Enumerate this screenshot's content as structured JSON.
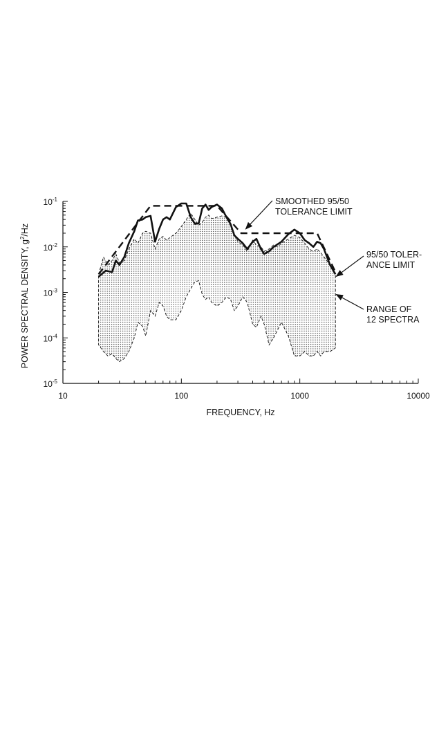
{
  "chart_data": {
    "type": "line",
    "xlabel": "FREQUENCY, Hz",
    "ylabel": "POWER SPECTRAL DENSITY, g²/Hz",
    "ylabel_parts": {
      "before": "POWER SPECTRAL DENSITY, g",
      "sup": "2",
      "after": "/Hz"
    },
    "x_scale": "log",
    "y_scale": "log",
    "xlim": [
      10,
      10000
    ],
    "ylim": [
      1e-05,
      0.1
    ],
    "x_ticks": [
      {
        "value": 10,
        "label": "10"
      },
      {
        "value": 100,
        "label": "100"
      },
      {
        "value": 1000,
        "label": "1000"
      },
      {
        "value": 10000,
        "label": "10000"
      }
    ],
    "y_ticks": [
      {
        "value": 0.1,
        "base": "10",
        "exp": "-1"
      },
      {
        "value": 0.01,
        "base": "10",
        "exp": "-2"
      },
      {
        "value": 0.001,
        "base": "10",
        "exp": "-3"
      },
      {
        "value": 0.0001,
        "base": "10",
        "exp": "-4"
      },
      {
        "value": 1e-05,
        "base": "10",
        "exp": "-5"
      }
    ],
    "grid": false,
    "series": [
      {
        "style": "shaded-band",
        "x": [
          20,
          22,
          24,
          26,
          28,
          30,
          33,
          36,
          40,
          43,
          47,
          50,
          55,
          60,
          65,
          70,
          75,
          80,
          90,
          100,
          110,
          120,
          130,
          140,
          150,
          160,
          170,
          180,
          200,
          220,
          240,
          260,
          280,
          300,
          330,
          360,
          400,
          430,
          470,
          500,
          550,
          600,
          650,
          700,
          800,
          900,
          1000,
          1100,
          1200,
          1300,
          1400,
          1500,
          1600,
          1800,
          2000
        ],
        "upper": [
          0.0025,
          0.006,
          0.004,
          0.005,
          0.007,
          0.0045,
          0.005,
          0.009,
          0.015,
          0.012,
          0.02,
          0.022,
          0.02,
          0.009,
          0.015,
          0.017,
          0.014,
          0.016,
          0.02,
          0.028,
          0.04,
          0.055,
          0.04,
          0.03,
          0.035,
          0.045,
          0.05,
          0.042,
          0.045,
          0.048,
          0.045,
          0.03,
          0.02,
          0.013,
          0.011,
          0.008,
          0.014,
          0.011,
          0.01,
          0.008,
          0.009,
          0.011,
          0.01,
          0.012,
          0.015,
          0.018,
          0.016,
          0.012,
          0.009,
          0.008,
          0.009,
          0.0075,
          0.006,
          0.004,
          0.0025
        ],
        "lower": [
          7e-05,
          5e-05,
          4e-05,
          4.5e-05,
          3.5e-05,
          3e-05,
          3.5e-05,
          5e-05,
          0.0001,
          0.00022,
          0.00018,
          0.00011,
          0.0004,
          0.0003,
          0.0006,
          0.0005,
          0.0003,
          0.00025,
          0.00025,
          0.0004,
          0.0008,
          0.0012,
          0.0017,
          0.0018,
          0.0009,
          0.0007,
          0.0008,
          0.0006,
          0.0005,
          0.0006,
          0.0008,
          0.0007,
          0.0004,
          0.0005,
          0.0008,
          0.0006,
          0.0002,
          0.00017,
          0.0003,
          0.0002,
          7e-05,
          0.0001,
          0.00015,
          0.00022,
          0.00011,
          4e-05,
          4e-05,
          5e-05,
          4e-05,
          4e-05,
          5e-05,
          4e-05,
          5e-05,
          5e-05,
          6e-05
        ]
      },
      {
        "style": "solid",
        "x": [
          20,
          23,
          26,
          28,
          30,
          33,
          36,
          40,
          43,
          47,
          50,
          55,
          60,
          65,
          70,
          75,
          80,
          90,
          100,
          110,
          120,
          130,
          140,
          150,
          160,
          170,
          180,
          200,
          220,
          240,
          260,
          280,
          300,
          330,
          360,
          400,
          430,
          470,
          500,
          550,
          600,
          700,
          800,
          900,
          1000,
          1100,
          1200,
          1300,
          1400,
          1500,
          1600,
          1800,
          2000
        ],
        "values": [
          0.0022,
          0.003,
          0.0028,
          0.005,
          0.004,
          0.006,
          0.012,
          0.022,
          0.038,
          0.04,
          0.045,
          0.048,
          0.013,
          0.025,
          0.04,
          0.045,
          0.04,
          0.075,
          0.09,
          0.09,
          0.045,
          0.032,
          0.033,
          0.07,
          0.085,
          0.065,
          0.075,
          0.085,
          0.07,
          0.045,
          0.032,
          0.018,
          0.015,
          0.012,
          0.009,
          0.013,
          0.015,
          0.009,
          0.007,
          0.008,
          0.01,
          0.013,
          0.019,
          0.024,
          0.02,
          0.014,
          0.012,
          0.01,
          0.013,
          0.012,
          0.009,
          0.004,
          0.0025
        ]
      },
      {
        "style": "dashed",
        "x": [
          20,
          55,
          200,
          320,
          1400,
          2000
        ],
        "values": [
          0.0025,
          0.08,
          0.08,
          0.02,
          0.02,
          0.0028
        ]
      }
    ],
    "annotations": [
      {
        "lines": [
          "SMOOTHED 95/50",
          "TOLERANCE LIMIT"
        ],
        "x": 340,
        "y": 0.02
      },
      {
        "lines": [
          "95/50 TOLER-",
          "ANCE LIMIT"
        ],
        "x": 1950,
        "y": 0.0025
      },
      {
        "lines": [
          "RANGE OF",
          "12 SPECTRA"
        ],
        "x": 1950,
        "y": 0.0009
      }
    ]
  }
}
